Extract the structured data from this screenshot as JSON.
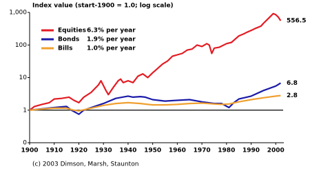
{
  "chart_data": {
    "type": "line",
    "title": "Index value (start-1900 = 1.0; log scale)",
    "footer": "(c) 2003 Dimson, Marsh, Staunton",
    "log_scale": true,
    "hline": 1,
    "xlim": [
      1900,
      2003
    ],
    "xticks": [
      1900,
      1910,
      1920,
      1930,
      1940,
      1950,
      1960,
      1970,
      1980,
      1990,
      2000
    ],
    "ylim": [
      0.1,
      1000
    ],
    "yticks": [
      {
        "value": 0.1,
        "label": "0"
      },
      1,
      10,
      100,
      {
        "value": 1000,
        "label": "1,000"
      }
    ],
    "series": [
      {
        "name": "Equities",
        "rate": "6.3% per year",
        "color": "#e31b23",
        "x": [
          1900,
          1902,
          1905,
          1908,
          1910,
          1913,
          1916,
          1918,
          1920,
          1922,
          1925,
          1928,
          1929,
          1931,
          1932,
          1934,
          1936,
          1937,
          1938,
          1940,
          1942,
          1944,
          1946,
          1948,
          1950,
          1952,
          1954,
          1956,
          1958,
          1960,
          1962,
          1964,
          1966,
          1968,
          1970,
          1972,
          1973,
          1974,
          1975,
          1977,
          1980,
          1982,
          1985,
          1987,
          1988,
          1990,
          1992,
          1994,
          1995,
          1997,
          1999,
          2000,
          2001,
          2002
        ],
        "values": [
          1,
          1.3,
          1.5,
          1.7,
          2.2,
          2.3,
          2.5,
          2.0,
          1.7,
          2.5,
          3.5,
          6,
          8,
          4,
          3,
          5,
          8,
          9,
          7,
          8,
          7,
          11,
          13,
          10,
          14,
          19,
          26,
          32,
          45,
          50,
          55,
          70,
          75,
          100,
          90,
          110,
          100,
          55,
          80,
          85,
          110,
          120,
          190,
          220,
          240,
          280,
          330,
          380,
          460,
          650,
          920,
          850,
          720,
          556.5
        ]
      },
      {
        "name": "Bonds",
        "rate": "1.9% per year",
        "color": "#1a1aa8",
        "x": [
          1900,
          1905,
          1910,
          1915,
          1917,
          1920,
          1922,
          1925,
          1930,
          1935,
          1940,
          1942,
          1945,
          1947,
          1950,
          1955,
          1960,
          1965,
          1970,
          1975,
          1978,
          1981,
          1983,
          1985,
          1990,
          1995,
          2000,
          2002
        ],
        "values": [
          1,
          1.1,
          1.2,
          1.3,
          1.0,
          0.75,
          1.0,
          1.2,
          1.6,
          2.3,
          2.7,
          2.5,
          2.6,
          2.5,
          2.1,
          1.9,
          2.0,
          2.1,
          1.8,
          1.6,
          1.6,
          1.2,
          1.7,
          2.2,
          2.7,
          4.0,
          5.5,
          6.8
        ]
      },
      {
        "name": "Bills",
        "rate": "1.0% per year",
        "color": "#f0a030",
        "x": [
          1900,
          1905,
          1910,
          1915,
          1918,
          1920,
          1925,
          1930,
          1935,
          1940,
          1945,
          1948,
          1950,
          1955,
          1960,
          1965,
          1970,
          1975,
          1978,
          1981,
          1985,
          1990,
          1995,
          2000,
          2002
        ],
        "values": [
          1,
          1.08,
          1.15,
          1.15,
          1.0,
          0.95,
          1.15,
          1.4,
          1.6,
          1.7,
          1.6,
          1.5,
          1.45,
          1.45,
          1.5,
          1.6,
          1.65,
          1.55,
          1.5,
          1.55,
          1.8,
          2.1,
          2.4,
          2.7,
          2.8
        ]
      }
    ]
  }
}
